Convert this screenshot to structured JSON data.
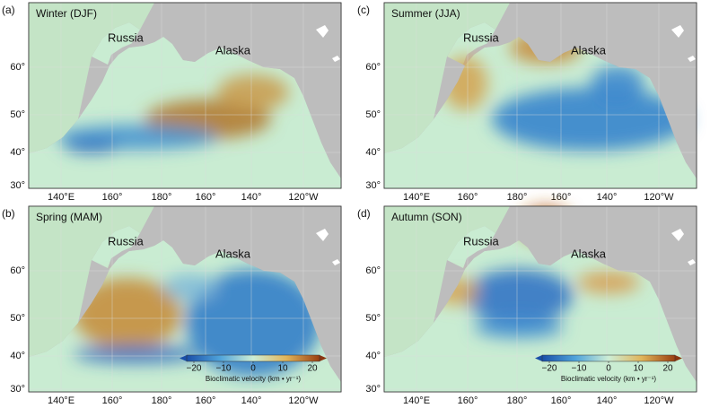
{
  "panels": [
    {
      "letter": "(a)",
      "title": "Winter (DJF)",
      "places": [
        "Russia",
        "Alaska"
      ],
      "lat_ticks": [
        "60°",
        "50°",
        "40°",
        "30°"
      ],
      "lon_ticks": [
        "140°E",
        "160°",
        "180°",
        "160°",
        "140°",
        "120°W"
      ]
    },
    {
      "letter": "(b)",
      "title": "Spring (MAM)",
      "places": [
        "Russia",
        "Alaska"
      ],
      "lat_ticks": [
        "60°",
        "50°",
        "40°",
        "30°"
      ],
      "lon_ticks": [
        "140°E",
        "160°",
        "180°",
        "160°",
        "140°",
        "120°W"
      ],
      "colorbar": {
        "ticks": [
          "−20",
          "−10",
          "0",
          "10",
          "20"
        ],
        "label": "Bioclimatic velocity (km • yr⁻¹)"
      }
    },
    {
      "letter": "(c)",
      "title": "Summer (JJA)",
      "places": [
        "Russia",
        "Alaska"
      ],
      "lat_ticks": [
        "60°",
        "50°",
        "40°",
        "30°"
      ],
      "lon_ticks": [
        "140°E",
        "160°",
        "180°",
        "160°",
        "140°",
        "120°W"
      ]
    },
    {
      "letter": "(d)",
      "title": "Autumn (SON)",
      "places": [
        "Russia",
        "Alaska"
      ],
      "lat_ticks": [
        "60°",
        "50°",
        "40°",
        "30°"
      ],
      "lon_ticks": [
        "140°E",
        "160°",
        "180°",
        "160°",
        "140°",
        "120°W"
      ],
      "colorbar": {
        "ticks": [
          "−20",
          "−10",
          "0",
          "10",
          "20"
        ],
        "label": "Bioclimatic velocity (km • yr⁻¹)"
      }
    }
  ]
}
